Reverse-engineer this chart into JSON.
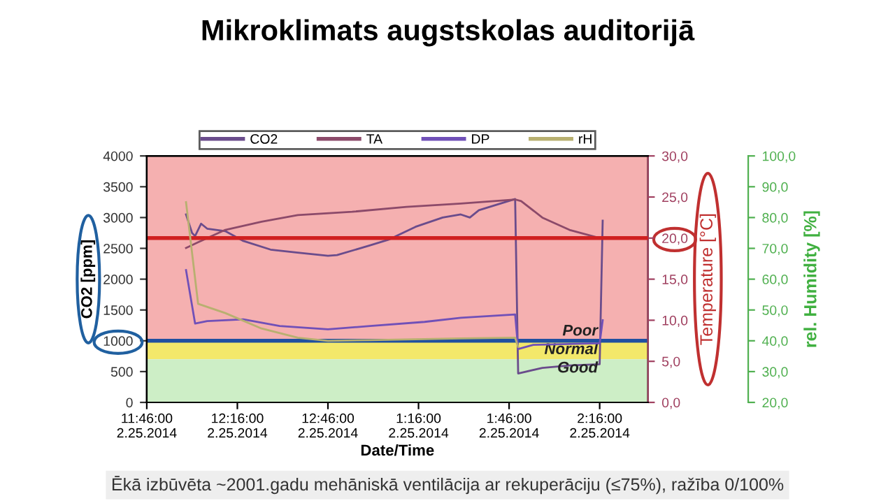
{
  "chart_data": {
    "type": "line",
    "title": "Mikroklimats augstskolas auditorijā",
    "xlabel": "Date/Time",
    "ylabel": "CO2 [ppm]",
    "y2label": "Temperature [°C]",
    "y3label": "rel. Humidity [%]",
    "annotations": [
      "Ēkā izbūvēta ~2001.gadu mehāniskā ventilācija ar rekuperāciju (≤75%), ražība 0/100%"
    ],
    "xlim": [
      "2014-02-25T11:46",
      "2014-02-25T14:32"
    ],
    "xticks": [
      {
        "value": "2014-02-25T11:46",
        "label": "11:46:00\n2.25.2014"
      },
      {
        "value": "2014-02-25T12:16",
        "label": "12:16:00\n2.25.2014"
      },
      {
        "value": "2014-02-25T12:46",
        "label": "12:46:00\n2.25.2014"
      },
      {
        "value": "2014-02-25T13:16",
        "label": "1:16:00\n2.25.2014"
      },
      {
        "value": "2014-02-25T13:46",
        "label": "1:46:00\n2.25.2014"
      },
      {
        "value": "2014-02-25T14:16",
        "label": "2:16:00\n2.25.2014"
      }
    ],
    "ylim": [
      0,
      4000
    ],
    "yticks": [
      0,
      500,
      1000,
      1500,
      2000,
      2500,
      3000,
      3500,
      4000
    ],
    "y2lim": [
      0,
      30
    ],
    "y2ticks": [
      {
        "value": 0,
        "label": "0,0"
      },
      {
        "value": 5,
        "label": "5,0"
      },
      {
        "value": 10,
        "label": "10,0"
      },
      {
        "value": 15,
        "label": "15,0"
      },
      {
        "value": 20,
        "label": "20,0"
      },
      {
        "value": 25,
        "label": "25,0"
      },
      {
        "value": 30,
        "label": "30,0"
      }
    ],
    "y3lim": [
      20,
      100
    ],
    "y3ticks": [
      {
        "value": 20,
        "label": "20,0"
      },
      {
        "value": 30,
        "label": "30,0"
      },
      {
        "value": 40,
        "label": "40,0"
      },
      {
        "value": 50,
        "label": "50,0"
      },
      {
        "value": 60,
        "label": "60,0"
      },
      {
        "value": 70,
        "label": "70,0"
      },
      {
        "value": 80,
        "label": "80,0"
      },
      {
        "value": 90,
        "label": "90,0"
      },
      {
        "value": 100,
        "label": "100,0"
      }
    ],
    "legend": "top",
    "grid": false,
    "series": [
      {
        "name": "CO2",
        "color": "#6a4c8c",
        "x": [
          "2014-02-25T11:59",
          "2014-02-25T12:01",
          "2014-02-25T12:02",
          "2014-02-25T12:04",
          "2014-02-25T12:06",
          "2014-02-25T12:12",
          "2014-02-25T12:18",
          "2014-02-25T12:27",
          "2014-02-25T12:36",
          "2014-02-25T12:46",
          "2014-02-25T12:49",
          "2014-02-25T13:00",
          "2014-02-25T13:06",
          "2014-02-25T13:15",
          "2014-02-25T13:24",
          "2014-02-25T13:30",
          "2014-02-25T13:33",
          "2014-02-25T13:36",
          "2014-02-25T13:48",
          "2014-02-25T13:49",
          "2014-02-25T13:57",
          "2014-02-25T14:06",
          "2014-02-25T14:16",
          "2014-02-25T14:17"
        ],
        "values": [
          3050,
          2750,
          2700,
          2900,
          2820,
          2780,
          2620,
          2480,
          2430,
          2380,
          2390,
          2550,
          2640,
          2850,
          3000,
          3050,
          3000,
          3120,
          3300,
          470,
          560,
          600,
          620,
          2950
        ]
      },
      {
        "name": "TA",
        "color": "#8c4a6a",
        "axis": "y2",
        "x": [
          "2014-02-25T11:59",
          "2014-02-25T12:03",
          "2014-02-25T12:12",
          "2014-02-25T12:24",
          "2014-02-25T12:36",
          "2014-02-25T12:54",
          "2014-02-25T13:12",
          "2014-02-25T13:30",
          "2014-02-25T13:48",
          "2014-02-25T13:50",
          "2014-02-25T13:57",
          "2014-02-25T14:06",
          "2014-02-25T14:16"
        ],
        "values": [
          18.8,
          19.5,
          21,
          22,
          22.8,
          23.2,
          23.8,
          24.2,
          24.7,
          24.5,
          22.5,
          21,
          20
        ]
      },
      {
        "name": "DP",
        "color": "#7050b8",
        "axis": "y2",
        "x": [
          "2014-02-25T11:59",
          "2014-02-25T12:02",
          "2014-02-25T12:06",
          "2014-02-25T12:18",
          "2014-02-25T12:30",
          "2014-02-25T12:46",
          "2014-02-25T13:00",
          "2014-02-25T13:18",
          "2014-02-25T13:30",
          "2014-02-25T13:48",
          "2014-02-25T13:49",
          "2014-02-25T13:54",
          "2014-02-25T14:16",
          "2014-02-25T14:17"
        ],
        "values": [
          16.1,
          9.6,
          9.9,
          10.1,
          9.3,
          8.9,
          9.3,
          9.8,
          10.3,
          10.7,
          6.5,
          7.0,
          7.2,
          10.0
        ]
      },
      {
        "name": "rH",
        "color": "#b8b070",
        "axis": "y3",
        "x": [
          "2014-02-25T11:59",
          "2014-02-25T12:03",
          "2014-02-25T12:12",
          "2014-02-25T12:24",
          "2014-02-25T12:36",
          "2014-02-25T12:46",
          "2014-02-25T13:00",
          "2014-02-25T13:30",
          "2014-02-25T13:48",
          "2014-02-25T13:49"
        ],
        "values": [
          85,
          52,
          49,
          44,
          41,
          40,
          40.2,
          40.8,
          41,
          38
        ]
      }
    ],
    "bands": [
      {
        "axis": "y",
        "from": 1000,
        "to": 4000,
        "label": "Poor",
        "color": "#f5b0b0"
      },
      {
        "axis": "y",
        "from": 700,
        "to": 1000,
        "label": "Normal",
        "color": "#f3e86a"
      },
      {
        "axis": "y",
        "from": 0,
        "to": 700,
        "label": "Good",
        "color": "#cdeec6"
      }
    ],
    "ref_lines": [
      {
        "axis": "y",
        "value": 1000,
        "color": "#2050a0"
      },
      {
        "axis": "y2",
        "value": 20,
        "color": "#d02020"
      }
    ]
  }
}
